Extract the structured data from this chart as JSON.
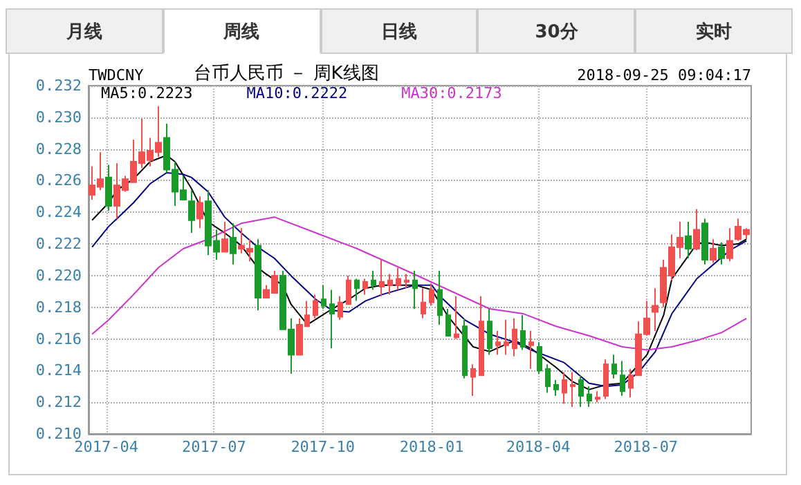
{
  "chart_data": {
    "type": "candlestick",
    "title": "台币人民币 － 周K线图",
    "subtitle": "TWDCNY",
    "annotations": [
      "月线",
      "周线",
      "日线",
      "30分",
      "实时",
      "2018-09-25 09:04:17"
    ],
    "x": [
      "2017-03-20",
      "2017-03-27",
      "2017-04-03",
      "2017-04-10",
      "2017-04-17",
      "2017-04-24",
      "2017-05-01",
      "2017-05-08",
      "2017-05-15",
      "2017-05-22",
      "2017-05-29",
      "2017-06-05",
      "2017-06-12",
      "2017-06-19",
      "2017-06-26",
      "2017-07-03",
      "2017-07-10",
      "2017-07-17",
      "2017-07-24",
      "2017-07-31",
      "2017-08-07",
      "2017-08-14",
      "2017-08-21",
      "2017-08-28",
      "2017-09-04",
      "2017-09-11",
      "2017-09-18",
      "2017-09-25",
      "2017-10-02",
      "2017-10-09",
      "2017-10-16",
      "2017-10-23",
      "2017-10-30",
      "2017-11-06",
      "2017-11-13",
      "2017-11-20",
      "2017-11-27",
      "2017-12-04",
      "2017-12-11",
      "2017-12-18",
      "2017-12-25",
      "2018-01-01",
      "2018-01-08",
      "2018-01-15",
      "2018-01-22",
      "2018-01-29",
      "2018-02-05",
      "2018-02-12",
      "2018-02-19",
      "2018-02-26",
      "2018-03-05",
      "2018-03-12",
      "2018-03-19",
      "2018-03-26",
      "2018-04-02",
      "2018-04-09",
      "2018-04-16",
      "2018-04-23",
      "2018-04-30",
      "2018-05-07",
      "2018-05-14",
      "2018-05-21",
      "2018-05-28",
      "2018-06-04",
      "2018-06-11",
      "2018-06-18",
      "2018-06-25",
      "2018-07-02",
      "2018-07-09",
      "2018-07-16",
      "2018-07-23",
      "2018-07-30",
      "2018-08-06",
      "2018-08-13",
      "2018-08-20",
      "2018-08-27",
      "2018-09-03",
      "2018-09-10",
      "2018-09-17",
      "2018-09-24"
    ],
    "ohlc": [
      [
        0.2251,
        0.2269,
        0.2248,
        0.2257
      ],
      [
        0.2256,
        0.2278,
        0.2254,
        0.2261
      ],
      [
        0.2262,
        0.227,
        0.2241,
        0.2244
      ],
      [
        0.2244,
        0.2271,
        0.2236,
        0.2257
      ],
      [
        0.2254,
        0.2263,
        0.2253,
        0.2261
      ],
      [
        0.2259,
        0.2286,
        0.2259,
        0.2272
      ],
      [
        0.2271,
        0.2299,
        0.2268,
        0.2278
      ],
      [
        0.2273,
        0.2287,
        0.2269,
        0.2279
      ],
      [
        0.2278,
        0.2307,
        0.2275,
        0.2284
      ],
      [
        0.2287,
        0.2296,
        0.2265,
        0.2267
      ],
      [
        0.2267,
        0.2272,
        0.2244,
        0.2253
      ],
      [
        0.2254,
        0.2263,
        0.2248,
        0.2248
      ],
      [
        0.2247,
        0.2254,
        0.2227,
        0.2235
      ],
      [
        0.2236,
        0.225,
        0.223,
        0.2246
      ],
      [
        0.2247,
        0.2254,
        0.2213,
        0.2219
      ],
      [
        0.2222,
        0.2229,
        0.221,
        0.2215
      ],
      [
        0.2215,
        0.2234,
        0.2215,
        0.2223
      ],
      [
        0.2224,
        0.2233,
        0.2207,
        0.2214
      ],
      [
        0.2217,
        0.223,
        0.2214,
        0.2219
      ],
      [
        0.2215,
        0.2223,
        0.2209,
        0.2217
      ],
      [
        0.2219,
        0.2223,
        0.2178,
        0.2186
      ],
      [
        0.2186,
        0.2194,
        0.2186,
        0.2191
      ],
      [
        0.2189,
        0.2203,
        0.2189,
        0.22
      ],
      [
        0.22,
        0.2203,
        0.2166,
        0.2166
      ],
      [
        0.2166,
        0.2173,
        0.2138,
        0.215
      ],
      [
        0.215,
        0.2173,
        0.215,
        0.2169
      ],
      [
        0.2168,
        0.2184,
        0.2168,
        0.2175
      ],
      [
        0.2175,
        0.2188,
        0.2173,
        0.2184
      ],
      [
        0.2185,
        0.2194,
        0.2179,
        0.2181
      ],
      [
        0.2182,
        0.2191,
        0.2154,
        0.2176
      ],
      [
        0.2174,
        0.2187,
        0.2172,
        0.2183
      ],
      [
        0.2182,
        0.22,
        0.2182,
        0.2197
      ],
      [
        0.2197,
        0.2198,
        0.2184,
        0.2192
      ],
      [
        0.2192,
        0.2198,
        0.2188,
        0.2196
      ],
      [
        0.2197,
        0.2203,
        0.2191,
        0.2194
      ],
      [
        0.2193,
        0.221,
        0.2187,
        0.2196
      ],
      [
        0.2194,
        0.2201,
        0.2188,
        0.2197
      ],
      [
        0.2194,
        0.2205,
        0.2191,
        0.2198
      ],
      [
        0.2196,
        0.2201,
        0.2192,
        0.2197
      ],
      [
        0.2197,
        0.2203,
        0.2179,
        0.2192
      ],
      [
        0.2176,
        0.2192,
        0.2173,
        0.2183
      ],
      [
        0.2183,
        0.2195,
        0.2181,
        0.2191
      ],
      [
        0.2191,
        0.2203,
        0.2169,
        0.2175
      ],
      [
        0.2175,
        0.2179,
        0.2162,
        0.2162
      ],
      [
        0.2161,
        0.2187,
        0.216,
        0.2163
      ],
      [
        0.2168,
        0.2173,
        0.2135,
        0.2137
      ],
      [
        0.2136,
        0.2144,
        0.2124,
        0.2141
      ],
      [
        0.2137,
        0.2187,
        0.2137,
        0.2171
      ],
      [
        0.2171,
        0.2179,
        0.215,
        0.2154
      ],
      [
        0.2156,
        0.2165,
        0.215,
        0.2158
      ],
      [
        0.2156,
        0.2172,
        0.215,
        0.2158
      ],
      [
        0.2154,
        0.2173,
        0.2149,
        0.2166
      ],
      [
        0.2165,
        0.2175,
        0.2153,
        0.2155
      ],
      [
        0.2156,
        0.2165,
        0.2141,
        0.2158
      ],
      [
        0.2155,
        0.2158,
        0.2138,
        0.214
      ],
      [
        0.2141,
        0.2144,
        0.2126,
        0.213
      ],
      [
        0.2131,
        0.2134,
        0.2124,
        0.2128
      ],
      [
        0.2126,
        0.2139,
        0.2119,
        0.2134
      ],
      [
        0.213,
        0.2139,
        0.2117,
        0.2131
      ],
      [
        0.2134,
        0.2137,
        0.2117,
        0.2124
      ],
      [
        0.2125,
        0.213,
        0.2117,
        0.2121
      ],
      [
        0.2122,
        0.2127,
        0.212,
        0.2123
      ],
      [
        0.2124,
        0.2147,
        0.2122,
        0.2144
      ],
      [
        0.2144,
        0.215,
        0.2135,
        0.2138
      ],
      [
        0.2137,
        0.2146,
        0.2124,
        0.2127
      ],
      [
        0.2129,
        0.2141,
        0.2123,
        0.2137
      ],
      [
        0.2137,
        0.2171,
        0.2137,
        0.2163
      ],
      [
        0.2163,
        0.2184,
        0.2162,
        0.2173
      ],
      [
        0.2177,
        0.2192,
        0.2165,
        0.2181
      ],
      [
        0.2183,
        0.221,
        0.218,
        0.2205
      ],
      [
        0.22,
        0.2226,
        0.2197,
        0.2218
      ],
      [
        0.2218,
        0.2234,
        0.2211,
        0.2224
      ],
      [
        0.2225,
        0.2234,
        0.2211,
        0.2217
      ],
      [
        0.2217,
        0.2242,
        0.2216,
        0.2229
      ],
      [
        0.2233,
        0.2236,
        0.2207,
        0.221
      ],
      [
        0.221,
        0.2223,
        0.2208,
        0.2217
      ],
      [
        0.2218,
        0.2221,
        0.2207,
        0.2211
      ],
      [
        0.2211,
        0.223,
        0.2209,
        0.2222
      ],
      [
        0.2223,
        0.2236,
        0.2222,
        0.2231
      ],
      [
        0.2226,
        0.223,
        0.2223,
        0.2229
      ]
    ],
    "colors": [
      "#f05050",
      "#f05050",
      "#1a9a2a",
      "#f05050",
      "#f05050",
      "#f05050",
      "#f05050",
      "#f05050",
      "#f05050",
      "#1a9a2a",
      "#1a9a2a",
      "#1a9a2a",
      "#1a9a2a",
      "#f05050",
      "#1a9a2a",
      "#1a9a2a",
      "#f05050",
      "#1a9a2a",
      "#f05050",
      "#f05050",
      "#1a9a2a",
      "#f05050",
      "#f05050",
      "#1a9a2a",
      "#1a9a2a",
      "#f05050",
      "#f05050",
      "#f05050",
      "#1a9a2a",
      "#1a9a2a",
      "#f05050",
      "#f05050",
      "#1a9a2a",
      "#f05050",
      "#1a9a2a",
      "#f05050",
      "#f05050",
      "#f05050",
      "#f05050",
      "#1a9a2a",
      "#f05050",
      "#f05050",
      "#1a9a2a",
      "#1a9a2a",
      "#f05050",
      "#1a9a2a",
      "#f05050",
      "#f05050",
      "#1a9a2a",
      "#f05050",
      "#f05050",
      "#f05050",
      "#1a9a2a",
      "#f05050",
      "#1a9a2a",
      "#1a9a2a",
      "#1a9a2a",
      "#f05050",
      "#f05050",
      "#1a9a2a",
      "#1a9a2a",
      "#f05050",
      "#f05050",
      "#1a9a2a",
      "#1a9a2a",
      "#f05050",
      "#f05050",
      "#f05050",
      "#f05050",
      "#f05050",
      "#f05050",
      "#f05050",
      "#1a9a2a",
      "#f05050",
      "#1a9a2a",
      "#f05050",
      "#1a9a2a",
      "#f05050",
      "#f05050",
      "#f05050"
    ],
    "series": [
      {
        "type": "line",
        "name": "MA5:0.2223",
        "color": "#000000",
        "x": [
          "2017-03-20",
          "2017-04-03",
          "2017-04-10",
          "2017-04-24",
          "2017-05-08",
          "2017-05-22",
          "2017-05-29",
          "2017-06-12",
          "2017-06-26",
          "2017-07-10",
          "2017-07-24",
          "2017-08-07",
          "2017-08-14",
          "2017-08-28",
          "2017-09-04",
          "2017-09-18",
          "2017-10-09",
          "2017-10-23",
          "2017-11-06",
          "2017-11-20",
          "2017-12-18",
          "2018-01-01",
          "2018-01-15",
          "2018-02-05",
          "2018-02-19",
          "2018-03-12",
          "2018-03-26",
          "2018-04-16",
          "2018-04-30",
          "2018-05-14",
          "2018-05-28",
          "2018-06-11",
          "2018-07-02",
          "2018-07-16",
          "2018-07-23",
          "2018-08-13",
          "2018-08-20",
          "2018-09-03",
          "2018-09-17",
          "2018-09-24"
        ],
        "values": [
          0.2235,
          0.2246,
          0.2254,
          0.2261,
          0.2272,
          0.2276,
          0.2272,
          0.2255,
          0.2234,
          0.2227,
          0.2219,
          0.2205,
          0.2201,
          0.2194,
          0.2182,
          0.2169,
          0.2179,
          0.2185,
          0.2192,
          0.2194,
          0.2194,
          0.2191,
          0.2174,
          0.2155,
          0.2152,
          0.2159,
          0.2154,
          0.2142,
          0.2133,
          0.2128,
          0.2131,
          0.2132,
          0.215,
          0.2175,
          0.2198,
          0.222,
          0.2221,
          0.2219,
          0.222,
          0.2223
        ]
      },
      {
        "type": "line",
        "name": "MA10:0.2222",
        "color": "#000080",
        "x": [
          "2017-03-20",
          "2017-04-03",
          "2017-04-10",
          "2017-04-24",
          "2017-05-08",
          "2017-05-22",
          "2017-06-05",
          "2017-06-12",
          "2017-06-26",
          "2017-07-10",
          "2017-07-24",
          "2017-08-07",
          "2017-08-21",
          "2017-09-04",
          "2017-09-25",
          "2017-10-09",
          "2017-10-23",
          "2017-11-06",
          "2017-11-20",
          "2017-12-18",
          "2018-01-01",
          "2018-01-08",
          "2018-01-29",
          "2018-02-19",
          "2018-03-12",
          "2018-03-26",
          "2018-04-23",
          "2018-05-14",
          "2018-05-28",
          "2018-06-11",
          "2018-06-25",
          "2018-07-09",
          "2018-07-23",
          "2018-08-13",
          "2018-08-27",
          "2018-09-10",
          "2018-09-24"
        ],
        "values": [
          0.2218,
          0.2231,
          0.2236,
          0.2246,
          0.2258,
          0.2265,
          0.2264,
          0.2262,
          0.2253,
          0.2237,
          0.2227,
          0.2218,
          0.2211,
          0.22,
          0.2185,
          0.2178,
          0.2177,
          0.2184,
          0.2188,
          0.2194,
          0.2194,
          0.2187,
          0.2172,
          0.2163,
          0.2158,
          0.2153,
          0.2145,
          0.2132,
          0.213,
          0.2131,
          0.2139,
          0.2152,
          0.2176,
          0.2198,
          0.2207,
          0.2216,
          0.2222
        ]
      },
      {
        "type": "line",
        "name": "MA30:0.2173",
        "color": "#cc33cc",
        "x": [
          "2017-03-20",
          "2017-04-03",
          "2017-04-24",
          "2017-05-15",
          "2017-06-05",
          "2017-06-26",
          "2017-07-24",
          "2017-08-21",
          "2017-09-25",
          "2017-10-30",
          "2017-12-11",
          "2018-01-15",
          "2018-02-19",
          "2018-03-19",
          "2018-04-16",
          "2018-05-14",
          "2018-06-11",
          "2018-07-02",
          "2018-07-23",
          "2018-08-13",
          "2018-09-03",
          "2018-09-24"
        ],
        "values": [
          0.2163,
          0.2172,
          0.2188,
          0.2205,
          0.2217,
          0.2223,
          0.2233,
          0.2237,
          0.2227,
          0.2217,
          0.2203,
          0.2191,
          0.2179,
          0.2176,
          0.2168,
          0.2162,
          0.2155,
          0.2153,
          0.2155,
          0.2159,
          0.2164,
          0.2173
        ]
      }
    ],
    "xlim": [
      "2017-03-17",
      "2018-09-28"
    ],
    "xticks": [
      "2017-04",
      "2017-07",
      "2017-10",
      "2018-01",
      "2018-04",
      "2018-07"
    ],
    "ylim": [
      0.21,
      0.232
    ],
    "yticks": [
      {
        "value": 0.21,
        "label": "0.210"
      },
      0.212,
      0.214,
      0.216,
      0.218,
      {
        "value": 0.22,
        "label": "0.220"
      },
      0.222,
      0.224,
      0.226,
      0.228,
      {
        "value": 0.23,
        "label": "0.230"
      },
      0.232
    ],
    "grid": true,
    "legend": "top left"
  }
}
